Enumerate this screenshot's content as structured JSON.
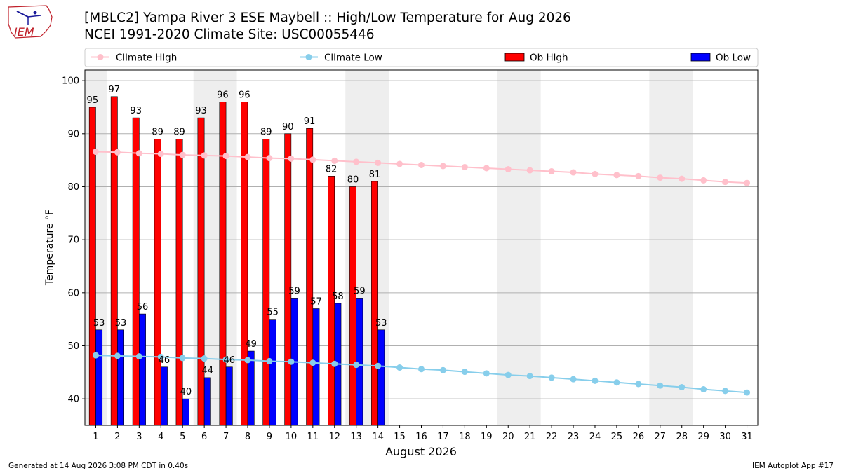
{
  "header": {
    "title_line1": "[MBLC2] Yampa River 3 ESE Maybell :: High/Low Temperature for Aug 2026",
    "title_line2": "NCEI 1991-2020 Climate Site: USC00055446",
    "logo_text": "IEM"
  },
  "footer": {
    "generated": "Generated at 14 Aug 2026 3:08 PM CDT in 0.40s",
    "app": "IEM Autoplot App #17"
  },
  "chart_data": {
    "type": "bar",
    "xlabel": "August 2026",
    "ylabel": "Temperature °F",
    "ylim": [
      35,
      102
    ],
    "xlim": [
      0.5,
      31.5
    ],
    "yticks": [
      40,
      50,
      60,
      70,
      80,
      90,
      100
    ],
    "grid": "horizontal",
    "legend_position": "top",
    "weekend_shading": [
      [
        1,
        1
      ],
      [
        6,
        7
      ],
      [
        13,
        14
      ],
      [
        20,
        21
      ],
      [
        27,
        28
      ]
    ],
    "days": [
      1,
      2,
      3,
      4,
      5,
      6,
      7,
      8,
      9,
      10,
      11,
      12,
      13,
      14,
      15,
      16,
      17,
      18,
      19,
      20,
      21,
      22,
      23,
      24,
      25,
      26,
      27,
      28,
      29,
      30,
      31
    ],
    "colors": {
      "ob_high": "#ff0000",
      "ob_low": "#0000ff",
      "climate_high": "#ffc0cb",
      "climate_low": "#87ceeb",
      "shade": "#eeeeee",
      "grid": "#b0b0b0"
    },
    "legend": [
      {
        "name": "Climate High",
        "kind": "line",
        "color": "#ffc0cb"
      },
      {
        "name": "Climate Low",
        "kind": "line",
        "color": "#87ceeb"
      },
      {
        "name": "Ob High",
        "kind": "bar",
        "color": "#ff0000"
      },
      {
        "name": "Ob Low",
        "kind": "bar",
        "color": "#0000ff"
      }
    ],
    "series": [
      {
        "name": "Ob High",
        "values": [
          95,
          97,
          93,
          89,
          89,
          93,
          96,
          96,
          89,
          90,
          91,
          82,
          80,
          81
        ]
      },
      {
        "name": "Ob Low",
        "values": [
          53,
          53,
          56,
          46,
          40,
          44,
          46,
          49,
          55,
          59,
          57,
          58,
          59,
          53
        ]
      },
      {
        "name": "Climate High",
        "values": [
          86.6,
          86.5,
          86.3,
          86.2,
          86.0,
          85.9,
          85.8,
          85.6,
          85.4,
          85.3,
          85.1,
          84.9,
          84.7,
          84.5,
          84.3,
          84.1,
          83.9,
          83.7,
          83.5,
          83.3,
          83.1,
          82.9,
          82.7,
          82.4,
          82.2,
          82.0,
          81.7,
          81.5,
          81.2,
          80.9,
          80.7
        ]
      },
      {
        "name": "Climate Low",
        "values": [
          48.2,
          48.1,
          48.0,
          47.9,
          47.7,
          47.6,
          47.4,
          47.3,
          47.1,
          47.0,
          46.8,
          46.6,
          46.4,
          46.2,
          45.9,
          45.6,
          45.4,
          45.1,
          44.8,
          44.5,
          44.3,
          44.0,
          43.7,
          43.4,
          43.1,
          42.8,
          42.5,
          42.2,
          41.8,
          41.5,
          41.2
        ]
      }
    ]
  }
}
